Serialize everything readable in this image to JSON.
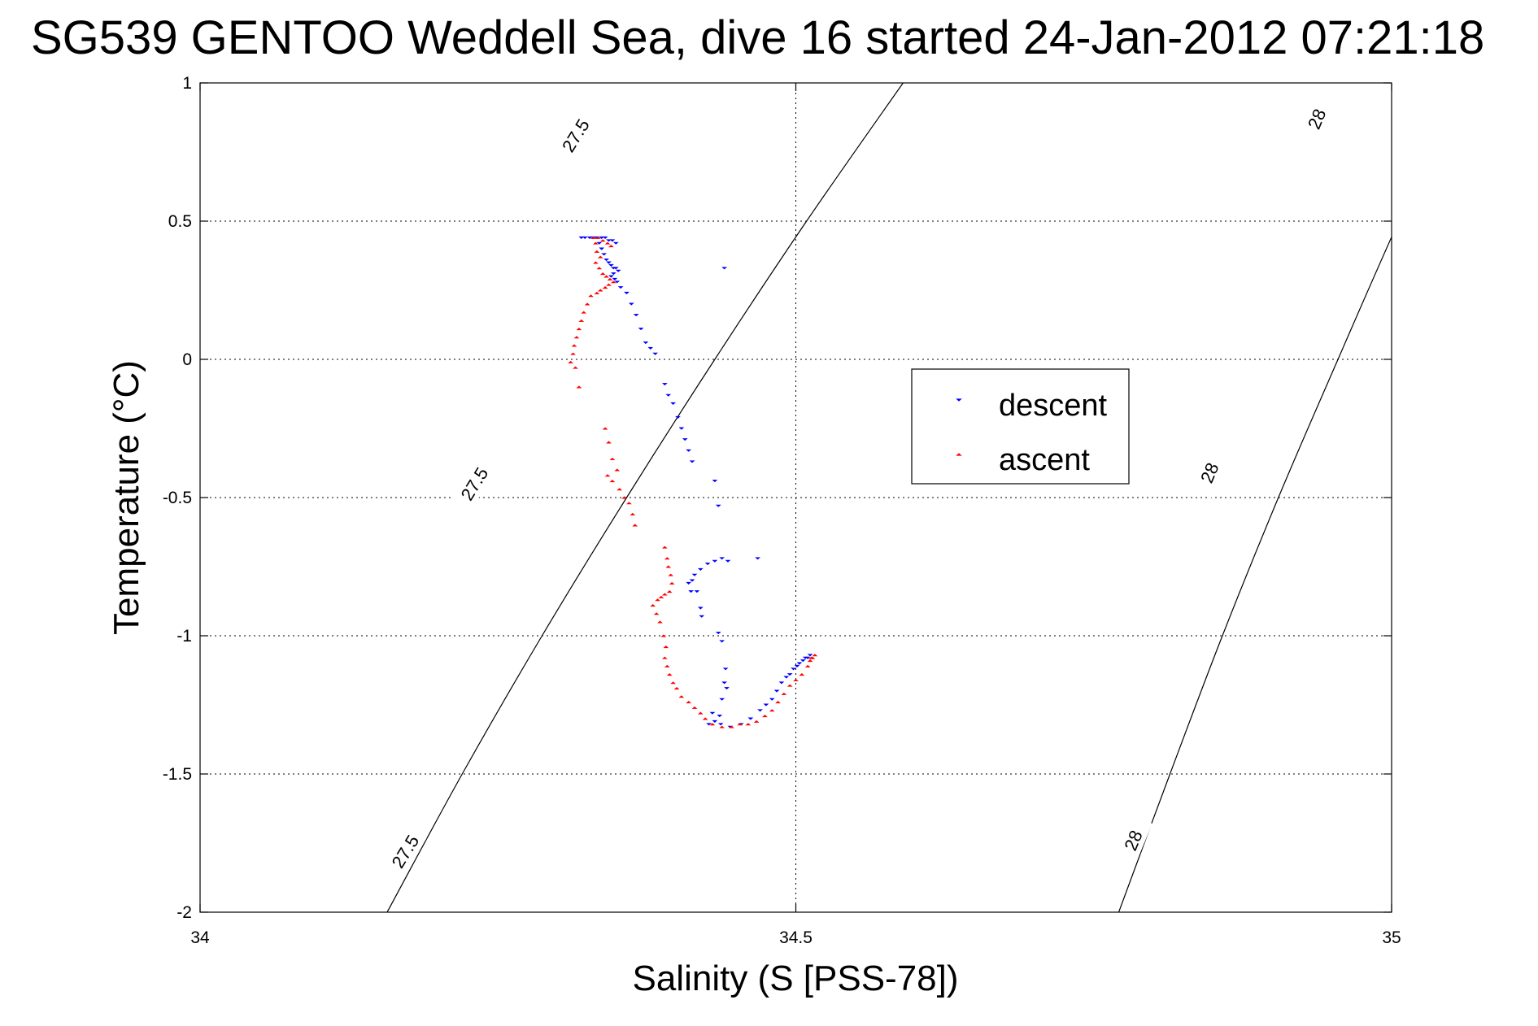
{
  "chart_data": {
    "type": "scatter",
    "title": "SG539 GENTOO Weddell Sea, dive 16 started 24-Jan-2012 07:21:18",
    "xlabel": "Salinity (S [PSS-78])",
    "ylabel": "Temperature (°C)",
    "xlim": [
      34,
      35
    ],
    "ylim": [
      -2,
      1
    ],
    "x_ticks": [
      34,
      34.5,
      35
    ],
    "x_tick_labels": [
      "34",
      "34.5",
      "35"
    ],
    "y_ticks": [
      1,
      0.5,
      0,
      -0.5,
      -1,
      -1.5,
      -2
    ],
    "y_tick_labels": [
      "1",
      "0.5",
      "0",
      "-0.5",
      "-1",
      "-1.5",
      "-2"
    ],
    "grid": true,
    "legend": {
      "position": "right-middle",
      "entries": [
        "descent",
        "ascent"
      ]
    },
    "colors": {
      "descent": "#0000ff",
      "ascent": "#ff0000",
      "contour": "#000000"
    },
    "density_contours": [
      {
        "level": "27.5",
        "points": [
          [
            34.157,
            -2.0
          ],
          [
            34.22,
            -1.5
          ],
          [
            34.287,
            -1.0
          ],
          [
            34.358,
            -0.5
          ],
          [
            34.432,
            0.0
          ],
          [
            34.509,
            0.5
          ],
          [
            34.59,
            1.0
          ]
        ],
        "labels": [
          {
            "text": "27.5",
            "at": [
              34.172,
              -1.78
            ]
          },
          {
            "text": "27.5",
            "at": [
              34.23,
              -0.45
            ]
          },
          {
            "text": "27.5",
            "at": [
              34.315,
              0.81
            ]
          }
        ]
      },
      {
        "level": "28",
        "points": [
          [
            34.771,
            -2.0
          ],
          [
            34.814,
            -1.5
          ],
          [
            34.858,
            -1.0
          ],
          [
            34.905,
            -0.5
          ],
          [
            34.955,
            0.0
          ],
          [
            35.006,
            0.5
          ],
          [
            35.06,
            1.0
          ]
        ],
        "labels": [
          {
            "text": "28",
            "at": [
              34.783,
              -1.74
            ]
          },
          {
            "text": "28",
            "at": [
              34.847,
              -0.41
            ]
          },
          {
            "text": "28",
            "at": [
              34.937,
              0.87
            ]
          }
        ]
      }
    ],
    "series": [
      {
        "name": "descent",
        "marker": "triangle-down",
        "points": [
          [
            34.32,
            0.44
          ],
          [
            34.323,
            0.44
          ],
          [
            34.327,
            0.44
          ],
          [
            34.33,
            0.44
          ],
          [
            34.333,
            0.44
          ],
          [
            34.337,
            0.44
          ],
          [
            34.34,
            0.44
          ],
          [
            34.343,
            0.43
          ],
          [
            34.346,
            0.43
          ],
          [
            34.349,
            0.42
          ],
          [
            34.335,
            0.42
          ],
          [
            34.337,
            0.4
          ],
          [
            34.339,
            0.38
          ],
          [
            34.341,
            0.36
          ],
          [
            34.343,
            0.35
          ],
          [
            34.345,
            0.34
          ],
          [
            34.347,
            0.33
          ],
          [
            34.349,
            0.33
          ],
          [
            34.351,
            0.32
          ],
          [
            34.347,
            0.31
          ],
          [
            34.345,
            0.3
          ],
          [
            34.348,
            0.29
          ],
          [
            34.35,
            0.28
          ],
          [
            34.353,
            0.26
          ],
          [
            34.358,
            0.24
          ],
          [
            34.362,
            0.2
          ],
          [
            34.366,
            0.16
          ],
          [
            34.37,
            0.11
          ],
          [
            34.374,
            0.06
          ],
          [
            34.378,
            0.04
          ],
          [
            34.382,
            0.02
          ],
          [
            34.39,
            -0.09
          ],
          [
            34.393,
            -0.13
          ],
          [
            34.397,
            -0.16
          ],
          [
            34.401,
            -0.21
          ],
          [
            34.404,
            -0.25
          ],
          [
            34.407,
            -0.29
          ],
          [
            34.41,
            -0.33
          ],
          [
            34.413,
            -0.37
          ],
          [
            34.432,
            -0.44
          ],
          [
            34.435,
            -0.53
          ],
          [
            34.438,
            -0.72
          ],
          [
            34.432,
            -0.73
          ],
          [
            34.443,
            -0.73
          ],
          [
            34.426,
            -0.74
          ],
          [
            34.42,
            -0.76
          ],
          [
            34.415,
            -0.78
          ],
          [
            34.413,
            -0.8
          ],
          [
            34.41,
            -0.81
          ],
          [
            34.412,
            -0.84
          ],
          [
            34.417,
            -0.84
          ],
          [
            34.42,
            -0.9
          ],
          [
            34.421,
            -0.93
          ],
          [
            34.435,
            -0.99
          ],
          [
            34.438,
            -1.02
          ],
          [
            34.441,
            -1.12
          ],
          [
            34.44,
            -1.17
          ],
          [
            34.442,
            -1.19
          ],
          [
            34.438,
            -1.23
          ],
          [
            34.43,
            -1.28
          ],
          [
            34.436,
            -1.29
          ],
          [
            34.427,
            -1.32
          ],
          [
            34.432,
            -1.31
          ],
          [
            34.437,
            -1.32
          ],
          [
            34.445,
            -1.33
          ],
          [
            34.454,
            -1.32
          ],
          [
            34.462,
            -1.3
          ],
          [
            34.47,
            -1.27
          ],
          [
            34.475,
            -1.25
          ],
          [
            34.48,
            -1.23
          ],
          [
            34.484,
            -1.2
          ],
          [
            34.488,
            -1.17
          ],
          [
            34.492,
            -1.15
          ],
          [
            34.495,
            -1.14
          ],
          [
            34.498,
            -1.12
          ],
          [
            34.501,
            -1.11
          ],
          [
            34.503,
            -1.1
          ],
          [
            34.506,
            -1.09
          ],
          [
            34.508,
            -1.08
          ],
          [
            34.51,
            -1.08
          ],
          [
            34.512,
            -1.07
          ],
          [
            34.468,
            -0.72
          ],
          [
            34.44,
            0.33
          ]
        ]
      },
      {
        "name": "ascent",
        "marker": "triangle-up",
        "points": [
          [
            34.33,
            0.44
          ],
          [
            34.334,
            0.44
          ],
          [
            34.338,
            0.43
          ],
          [
            34.342,
            0.42
          ],
          [
            34.345,
            0.41
          ],
          [
            34.332,
            0.42
          ],
          [
            34.333,
            0.39
          ],
          [
            34.336,
            0.37
          ],
          [
            34.332,
            0.35
          ],
          [
            34.335,
            0.33
          ],
          [
            34.338,
            0.31
          ],
          [
            34.341,
            0.3
          ],
          [
            34.344,
            0.29
          ],
          [
            34.347,
            0.28
          ],
          [
            34.343,
            0.27
          ],
          [
            34.34,
            0.26
          ],
          [
            34.336,
            0.25
          ],
          [
            34.333,
            0.24
          ],
          [
            34.328,
            0.23
          ],
          [
            34.325,
            0.2
          ],
          [
            34.322,
            0.17
          ],
          [
            34.32,
            0.14
          ],
          [
            34.318,
            0.11
          ],
          [
            34.316,
            0.08
          ],
          [
            34.314,
            0.05
          ],
          [
            34.313,
            0.02
          ],
          [
            34.311,
            -0.01
          ],
          [
            34.315,
            -0.03
          ],
          [
            34.318,
            -0.1
          ],
          [
            34.34,
            -0.25
          ],
          [
            34.343,
            -0.3
          ],
          [
            34.346,
            -0.36
          ],
          [
            34.35,
            -0.4
          ],
          [
            34.342,
            -0.42
          ],
          [
            34.346,
            -0.44
          ],
          [
            34.352,
            -0.47
          ],
          [
            34.356,
            -0.5
          ],
          [
            34.36,
            -0.52
          ],
          [
            34.363,
            -0.56
          ],
          [
            34.365,
            -0.6
          ],
          [
            34.39,
            -0.68
          ],
          [
            34.392,
            -0.72
          ],
          [
            34.393,
            -0.75
          ],
          [
            34.395,
            -0.78
          ],
          [
            34.396,
            -0.81
          ],
          [
            34.394,
            -0.84
          ],
          [
            34.39,
            -0.85
          ],
          [
            34.387,
            -0.86
          ],
          [
            34.384,
            -0.87
          ],
          [
            34.38,
            -0.89
          ],
          [
            34.383,
            -0.92
          ],
          [
            34.386,
            -0.95
          ],
          [
            34.389,
            -1.0
          ],
          [
            34.391,
            -1.04
          ],
          [
            34.39,
            -1.08
          ],
          [
            34.392,
            -1.11
          ],
          [
            34.394,
            -1.14
          ],
          [
            34.397,
            -1.17
          ],
          [
            34.4,
            -1.19
          ],
          [
            34.404,
            -1.22
          ],
          [
            34.41,
            -1.24
          ],
          [
            34.415,
            -1.26
          ],
          [
            34.42,
            -1.28
          ],
          [
            34.424,
            -1.3
          ],
          [
            34.43,
            -1.32
          ],
          [
            34.438,
            -1.33
          ],
          [
            34.446,
            -1.33
          ],
          [
            34.453,
            -1.32
          ],
          [
            34.46,
            -1.32
          ],
          [
            34.467,
            -1.31
          ],
          [
            34.474,
            -1.29
          ],
          [
            34.48,
            -1.27
          ],
          [
            34.485,
            -1.24
          ],
          [
            34.49,
            -1.21
          ],
          [
            34.495,
            -1.18
          ],
          [
            34.5,
            -1.16
          ],
          [
            34.505,
            -1.14
          ],
          [
            34.51,
            -1.11
          ],
          [
            34.512,
            -1.09
          ],
          [
            34.514,
            -1.08
          ],
          [
            34.516,
            -1.07
          ],
          [
            34.513,
            -1.08
          ]
        ]
      }
    ]
  }
}
